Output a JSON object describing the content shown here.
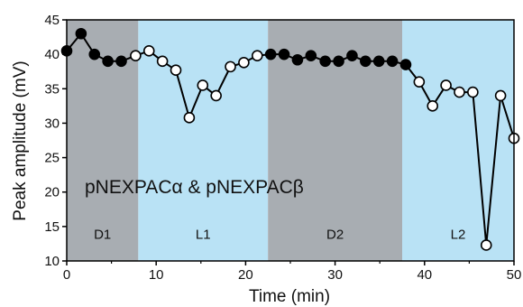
{
  "chart_data": {
    "type": "line",
    "title": "",
    "xlabel": "Time (min)",
    "ylabel": "Peak amplitude (mV)",
    "xlim": [
      0,
      50
    ],
    "ylim": [
      10,
      45
    ],
    "xticks": [
      0,
      10,
      20,
      30,
      40,
      50
    ],
    "yticks": [
      10,
      15,
      20,
      25,
      30,
      35,
      40,
      45
    ],
    "annotation": "pNEXPACα & pNEXPACβ",
    "colors": {
      "dark_region": "#a8adb2",
      "light_region": "#b9e2f5",
      "line": "#000000"
    },
    "regions": [
      {
        "label": "D1",
        "start": 0,
        "end": 8,
        "shade": "dark"
      },
      {
        "label": "L1",
        "start": 8,
        "end": 22.5,
        "shade": "light"
      },
      {
        "label": "D2",
        "start": 22.5,
        "end": 37.5,
        "shade": "dark"
      },
      {
        "label": "L2",
        "start": 37.5,
        "end": 50,
        "shade": "light"
      }
    ],
    "series": [
      {
        "points": [
          {
            "x": 0,
            "y": 40.5,
            "filled": true
          },
          {
            "x": 1.6,
            "y": 43,
            "filled": true
          },
          {
            "x": 3.1,
            "y": 40,
            "filled": true
          },
          {
            "x": 4.6,
            "y": 39,
            "filled": true
          },
          {
            "x": 6.1,
            "y": 39,
            "filled": true
          },
          {
            "x": 7.7,
            "y": 39.8,
            "filled": false
          },
          {
            "x": 9.2,
            "y": 40.5,
            "filled": false
          },
          {
            "x": 10.7,
            "y": 39,
            "filled": false
          },
          {
            "x": 12.2,
            "y": 37.7,
            "filled": false
          },
          {
            "x": 13.7,
            "y": 30.8,
            "filled": false
          },
          {
            "x": 15.2,
            "y": 35.5,
            "filled": false
          },
          {
            "x": 16.7,
            "y": 34,
            "filled": false
          },
          {
            "x": 18.3,
            "y": 38.2,
            "filled": false
          },
          {
            "x": 19.8,
            "y": 38.8,
            "filled": false
          },
          {
            "x": 21.3,
            "y": 39.8,
            "filled": false
          },
          {
            "x": 22.8,
            "y": 40,
            "filled": true
          },
          {
            "x": 24.3,
            "y": 40,
            "filled": true
          },
          {
            "x": 25.8,
            "y": 39.2,
            "filled": true
          },
          {
            "x": 27.3,
            "y": 39.8,
            "filled": true
          },
          {
            "x": 28.9,
            "y": 39,
            "filled": true
          },
          {
            "x": 30.4,
            "y": 39,
            "filled": true
          },
          {
            "x": 31.9,
            "y": 39.8,
            "filled": true
          },
          {
            "x": 33.4,
            "y": 39,
            "filled": true
          },
          {
            "x": 34.9,
            "y": 39,
            "filled": true
          },
          {
            "x": 36.4,
            "y": 39,
            "filled": true
          },
          {
            "x": 37.9,
            "y": 38.5,
            "filled": true
          },
          {
            "x": 39.4,
            "y": 36,
            "filled": false
          },
          {
            "x": 40.9,
            "y": 32.5,
            "filled": false
          },
          {
            "x": 42.4,
            "y": 35.5,
            "filled": false
          },
          {
            "x": 43.9,
            "y": 34.5,
            "filled": false
          },
          {
            "x": 45.4,
            "y": 34.5,
            "filled": false
          },
          {
            "x": 46.9,
            "y": 12.3,
            "filled": false
          },
          {
            "x": 48.5,
            "y": 34,
            "filled": false
          },
          {
            "x": 50,
            "y": 27.8,
            "filled": false
          }
        ]
      }
    ]
  }
}
